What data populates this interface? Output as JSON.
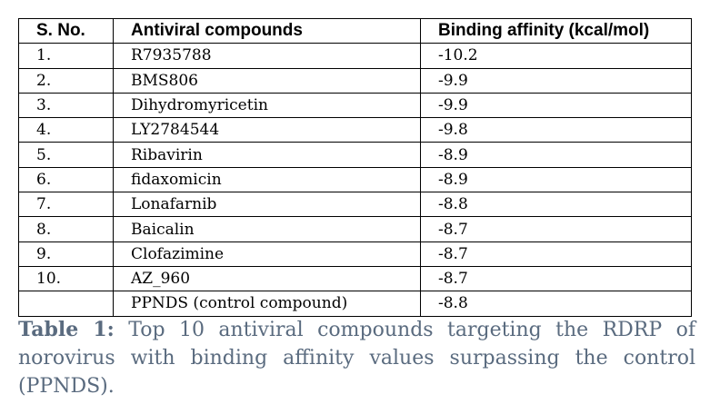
{
  "table": {
    "headers": [
      "S. No.",
      "Antiviral compounds",
      "Binding affinity (kcal/mol)"
    ],
    "rows": [
      [
        "1.",
        "R7935788",
        "-10.2"
      ],
      [
        "2.",
        "BMS806",
        "-9.9"
      ],
      [
        "3.",
        "Dihydromyricetin",
        "-9.9"
      ],
      [
        "4.",
        "LY2784544",
        "-9.8"
      ],
      [
        "5.",
        "Ribavirin",
        "-8.9"
      ],
      [
        "6.",
        "fidaxomicin",
        "-8.9"
      ],
      [
        "7.",
        "Lonafarnib",
        "-8.8"
      ],
      [
        "8.",
        "Baicalin",
        "-8.7"
      ],
      [
        "9.",
        "Clofazimine",
        "-8.7"
      ],
      [
        "10.",
        "AZ_960",
        "-8.7"
      ],
      [
        "",
        "PPNDS (control compound)",
        "-8.8"
      ]
    ]
  },
  "caption": {
    "label": "Table 1:",
    "text": "Top 10 antiviral compounds targeting the RDRP of norovirus with binding affinity values surpassing the control (PPNDS)."
  },
  "colors": {
    "caption_text": "#5a6b7f",
    "table_border": "#000000"
  }
}
